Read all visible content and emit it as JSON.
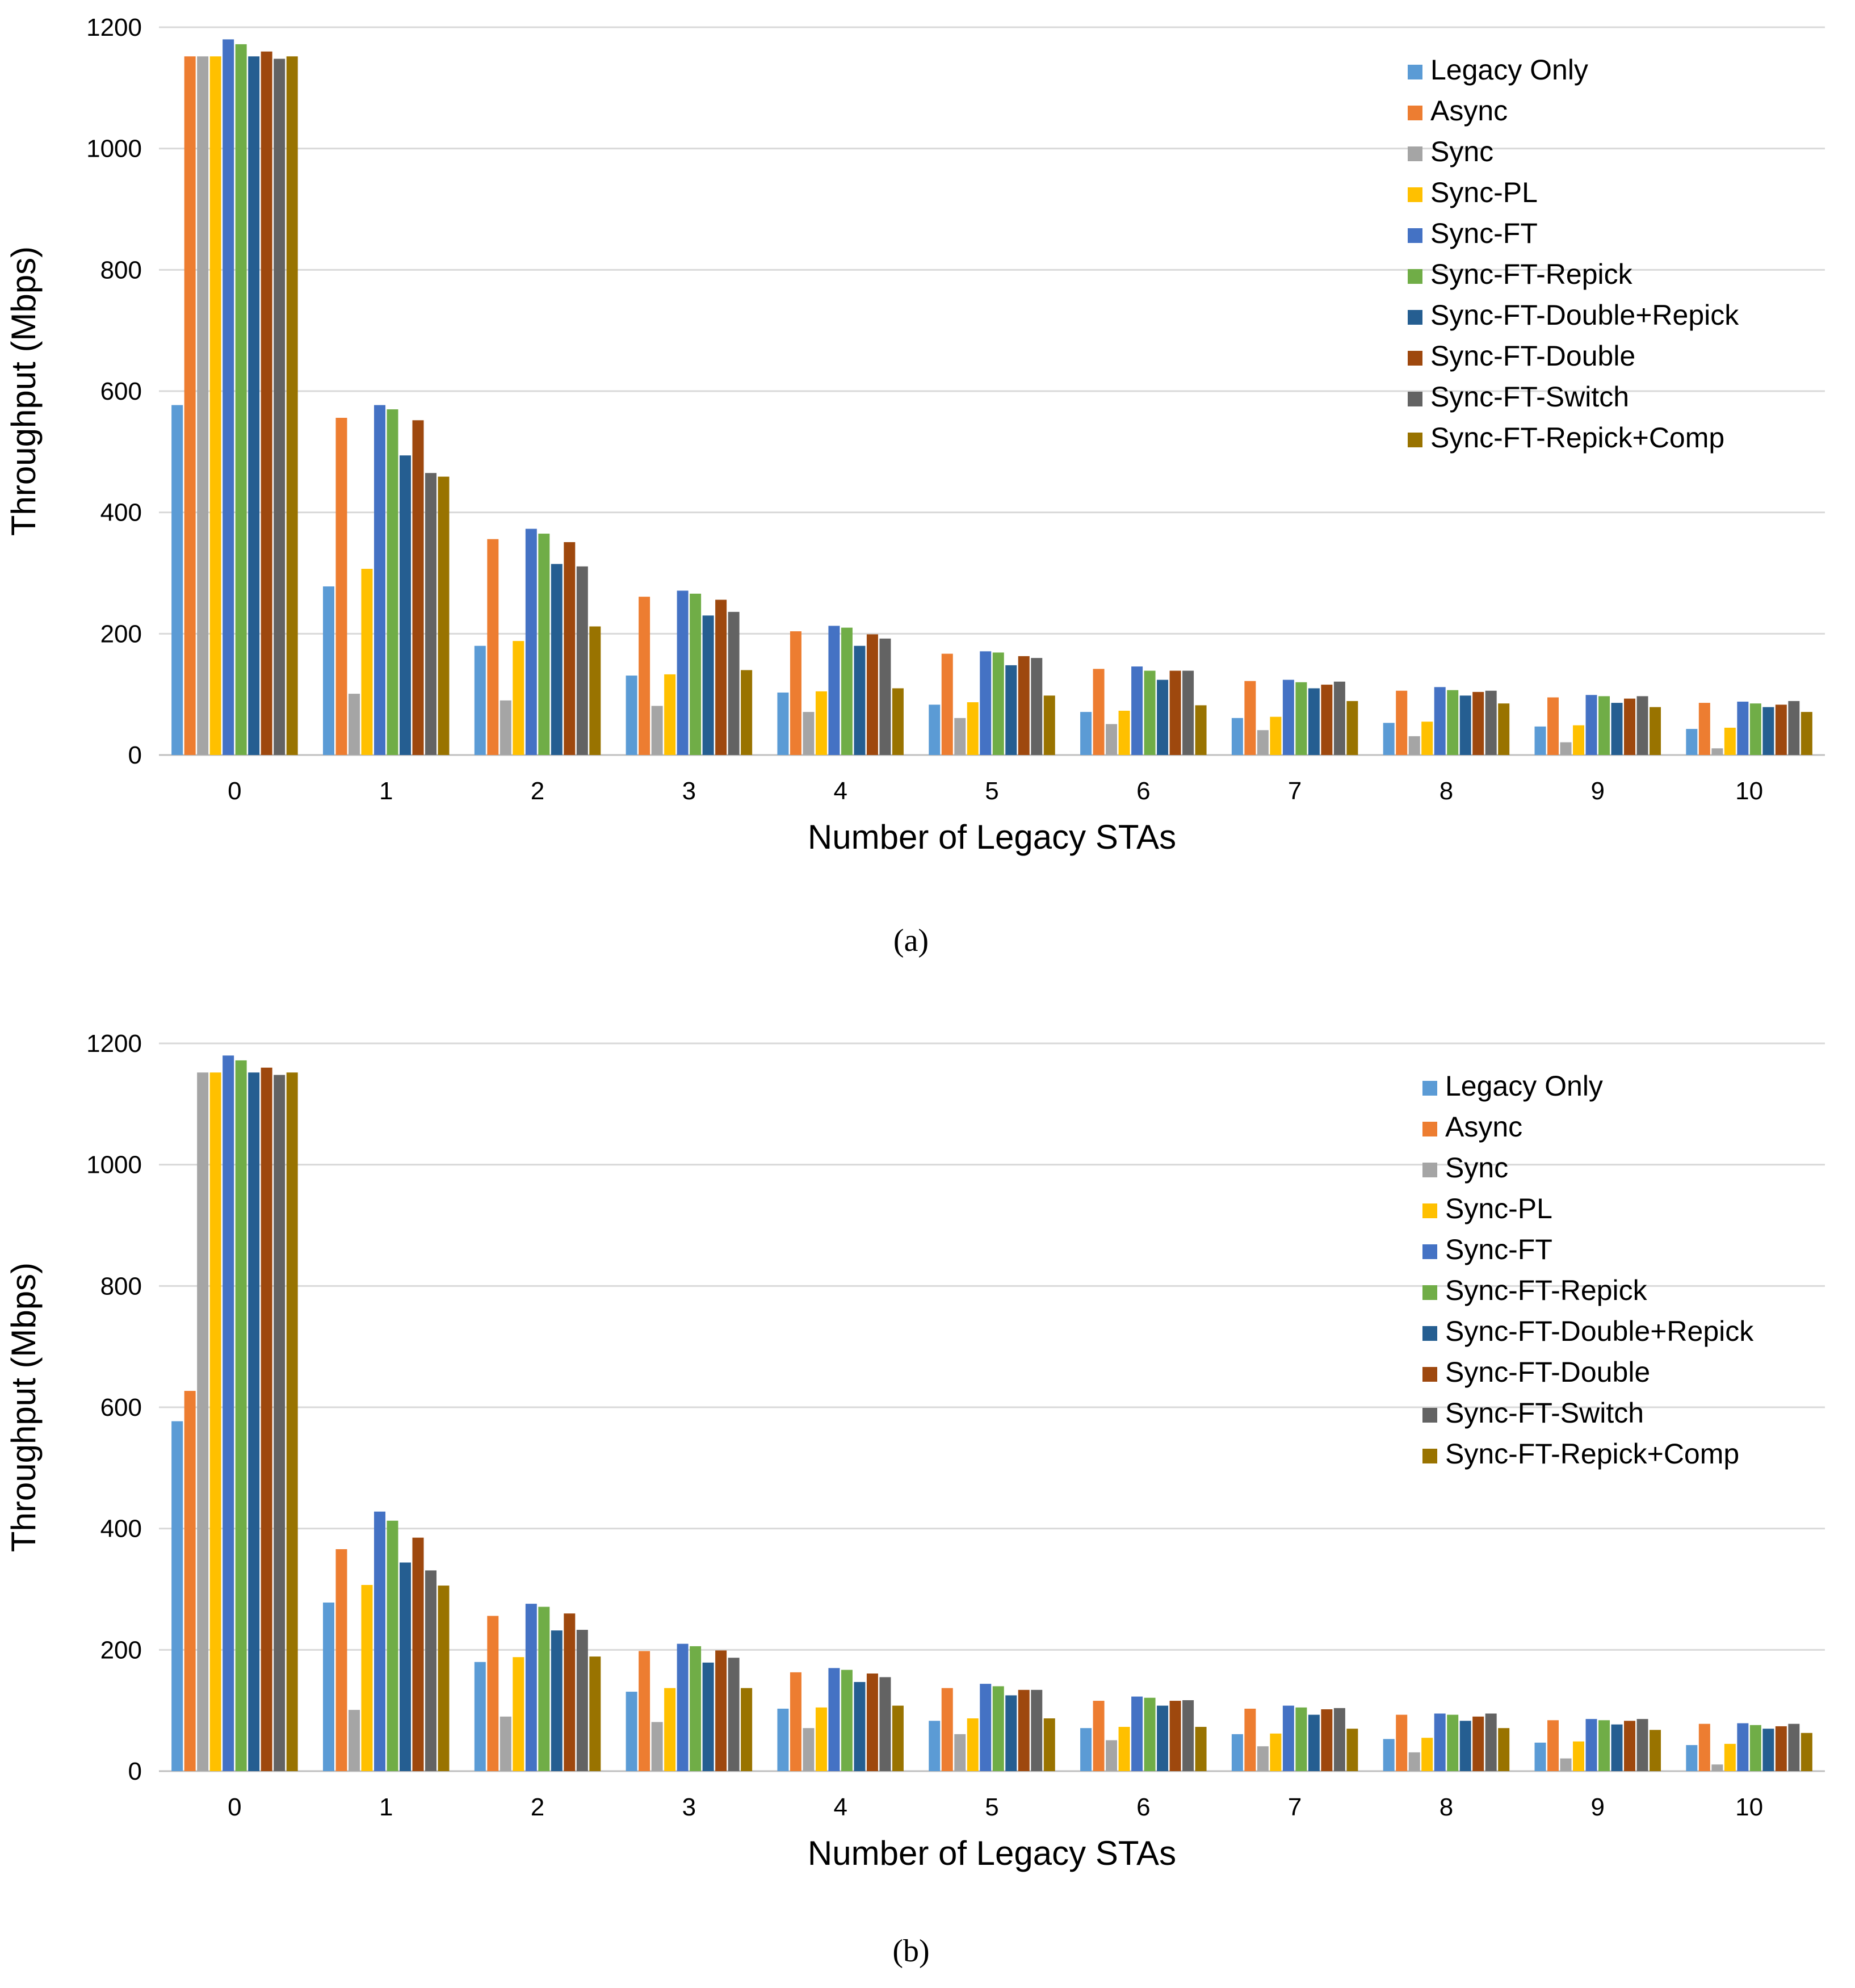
{
  "chart_data": [
    {
      "type": "bar",
      "caption": "(a)",
      "title": "",
      "xlabel": "Number of Legacy STAs",
      "ylabel": "Throughput (Mbps)",
      "ylim": [
        0,
        1200
      ],
      "yticks": [
        0,
        200,
        400,
        600,
        800,
        1000,
        1200
      ],
      "grid": true,
      "legend_position": "top-right",
      "categories": [
        "0",
        "1",
        "2",
        "3",
        "4",
        "5",
        "6",
        "7",
        "8",
        "9",
        "10"
      ],
      "series": [
        {
          "name": "Legacy Only",
          "color": "#5B9BD5",
          "values": [
            577,
            278,
            180,
            131,
            103,
            83,
            71,
            61,
            53,
            47,
            43
          ]
        },
        {
          "name": "Async",
          "color": "#ED7D31",
          "values": [
            1152,
            556,
            356,
            261,
            204,
            167,
            142,
            122,
            106,
            95,
            86
          ]
        },
        {
          "name": "Sync",
          "color": "#A5A5A5",
          "values": [
            1152,
            101,
            90,
            81,
            71,
            61,
            51,
            41,
            31,
            21,
            11
          ]
        },
        {
          "name": "Sync-PL",
          "color": "#FFC000",
          "values": [
            1152,
            307,
            188,
            133,
            105,
            87,
            73,
            63,
            55,
            49,
            45
          ]
        },
        {
          "name": "Sync-FT",
          "color": "#4472C4",
          "values": [
            1180,
            577,
            373,
            271,
            213,
            171,
            146,
            124,
            112,
            99,
            88
          ]
        },
        {
          "name": "Sync-FT-Repick",
          "color": "#70AD47",
          "values": [
            1172,
            570,
            365,
            266,
            210,
            169,
            139,
            120,
            107,
            97,
            85
          ]
        },
        {
          "name": "Sync-FT-Double+Repick",
          "color": "#255E91",
          "values": [
            1152,
            494,
            315,
            230,
            180,
            148,
            124,
            110,
            98,
            86,
            79
          ]
        },
        {
          "name": "Sync-FT-Double",
          "color": "#9E480E",
          "values": [
            1160,
            552,
            351,
            256,
            199,
            163,
            139,
            116,
            104,
            93,
            83
          ]
        },
        {
          "name": "Sync-FT-Switch",
          "color": "#636363",
          "values": [
            1148,
            465,
            311,
            236,
            192,
            160,
            139,
            121,
            106,
            97,
            89
          ]
        },
        {
          "name": "Sync-FT-Repick+Comp",
          "color": "#997300",
          "values": [
            1152,
            459,
            212,
            140,
            110,
            98,
            82,
            89,
            85,
            79,
            71
          ]
        }
      ]
    },
    {
      "type": "bar",
      "caption": "(b)",
      "title": "",
      "xlabel": "Number of Legacy STAs",
      "ylabel": "Throughput (Mbps)",
      "ylim": [
        0,
        1200
      ],
      "yticks": [
        0,
        200,
        400,
        600,
        800,
        1000,
        1200
      ],
      "grid": true,
      "legend_position": "top-right",
      "categories": [
        "0",
        "1",
        "2",
        "3",
        "4",
        "5",
        "6",
        "7",
        "8",
        "9",
        "10"
      ],
      "series": [
        {
          "name": "Legacy Only",
          "color": "#5B9BD5",
          "values": [
            577,
            278,
            180,
            131,
            103,
            83,
            71,
            61,
            53,
            47,
            43
          ]
        },
        {
          "name": "Async",
          "color": "#ED7D31",
          "values": [
            627,
            366,
            256,
            198,
            163,
            137,
            116,
            103,
            93,
            84,
            78
          ]
        },
        {
          "name": "Sync",
          "color": "#A5A5A5",
          "values": [
            1152,
            101,
            90,
            81,
            71,
            61,
            51,
            41,
            31,
            21,
            11
          ]
        },
        {
          "name": "Sync-PL",
          "color": "#FFC000",
          "values": [
            1152,
            307,
            188,
            137,
            105,
            87,
            73,
            62,
            55,
            49,
            45
          ]
        },
        {
          "name": "Sync-FT",
          "color": "#4472C4",
          "values": [
            1180,
            428,
            276,
            210,
            170,
            144,
            123,
            108,
            95,
            86,
            79
          ]
        },
        {
          "name": "Sync-FT-Repick",
          "color": "#70AD47",
          "values": [
            1172,
            413,
            271,
            206,
            167,
            140,
            121,
            105,
            93,
            84,
            76
          ]
        },
        {
          "name": "Sync-FT-Double+Repick",
          "color": "#255E91",
          "values": [
            1152,
            344,
            232,
            179,
            147,
            125,
            108,
            93,
            83,
            77,
            70
          ]
        },
        {
          "name": "Sync-FT-Double",
          "color": "#9E480E",
          "values": [
            1160,
            385,
            260,
            199,
            161,
            134,
            116,
            102,
            90,
            83,
            74
          ]
        },
        {
          "name": "Sync-FT-Switch",
          "color": "#636363",
          "values": [
            1148,
            331,
            233,
            187,
            155,
            134,
            117,
            104,
            95,
            86,
            78
          ]
        },
        {
          "name": "Sync-FT-Repick+Comp",
          "color": "#997300",
          "values": [
            1152,
            306,
            189,
            137,
            108,
            87,
            73,
            70,
            71,
            68,
            63
          ]
        }
      ]
    }
  ]
}
